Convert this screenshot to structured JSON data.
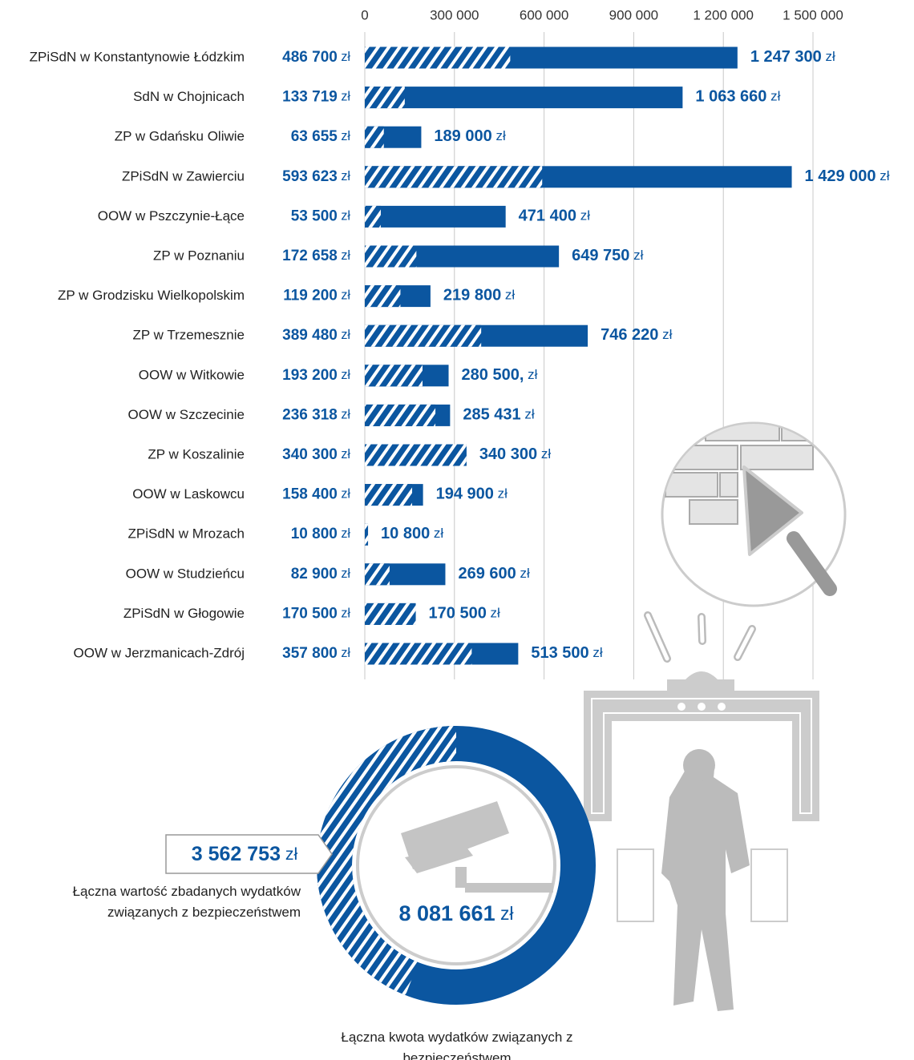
{
  "chart_data": [
    {
      "type": "bar",
      "categories": [
        "ZPiSdN w Konstantynowie Łódzkim",
        "SdN w Chojnicach",
        "ZP w Gdańsku Oliwie",
        "ZPiSdN w Zawierciu",
        "OOW w Pszczynie-Łące",
        "ZP w Poznaniu",
        "ZP w Grodzisku Wielkopolskim",
        "ZP w Trzemesznie",
        "OOW w Witkowie",
        "OOW w Szczecinie",
        "ZP w Koszalinie",
        "OOW w Laskowcu",
        "ZPiSdN w Mrozach",
        "OOW w Studzieńcu",
        "ZPiSdN w Głogowie",
        "OOW w Jerzmanicach-Zdrój"
      ],
      "series": [
        {
          "color": "#0b56a0",
          "pattern": "hatch",
          "values": [
            486700,
            133719,
            63655,
            593623,
            53500,
            172658,
            119200,
            389480,
            193200,
            236318,
            340300,
            158400,
            10800,
            82900,
            170500,
            357800
          ],
          "value_labels": [
            "486 700 zł",
            "133 719 zł",
            "63 655 zł",
            "593 623 zł",
            "53 500 zł",
            "172 658 zł",
            "119 200 zł",
            "389 480 zł",
            "193 200 zł",
            "236 318 zł",
            "340 300 zł",
            "158 400 zł",
            "10 800 zł",
            "82 900 zł",
            "170 500 zł",
            "357 800 zł"
          ]
        },
        {
          "color": "#0b56a0",
          "pattern": "solid",
          "values": [
            1247300,
            1063660,
            189000,
            1429000,
            471400,
            649750,
            219800,
            746220,
            280500,
            285431,
            340300,
            194900,
            10800,
            269600,
            170500,
            513500
          ],
          "value_labels": [
            "1 247 300 zł",
            "1 063 660 zł",
            "189 000 zł",
            "1 429 000 zł",
            "471 400 zł",
            "649 750 zł",
            "219 800 zł",
            "746 220 zł",
            "280 500, zł",
            "285 431 zł",
            "340 300 zł",
            "194 900 zł",
            "10 800 zł",
            "269 600 zł",
            "170 500 zł",
            "513 500 zł"
          ]
        }
      ],
      "xlim": [
        0,
        1500000
      ],
      "xticks": [
        0,
        {
          "value": 300000,
          "label": "300 000"
        },
        {
          "value": 600000,
          "label": "600 000"
        },
        {
          "value": 900000,
          "label": "900 000"
        },
        {
          "value": 1200000,
          "label": "1 200 000"
        },
        {
          "value": 1500000,
          "label": "1 500 000"
        }
      ],
      "grid": true
    },
    {
      "type": "donut",
      "values": [
        3562753,
        8081661
      ],
      "value_labels": [
        "3 562 753 zł",
        "8 081 661 zł"
      ],
      "labels": [
        "Łączna wartość zbadanych wydatków związanych z bezpieczeństwem",
        "Łączna kwota wydatków związanych z bezpieczeństwem"
      ],
      "color": "#0b56a0"
    }
  ]
}
